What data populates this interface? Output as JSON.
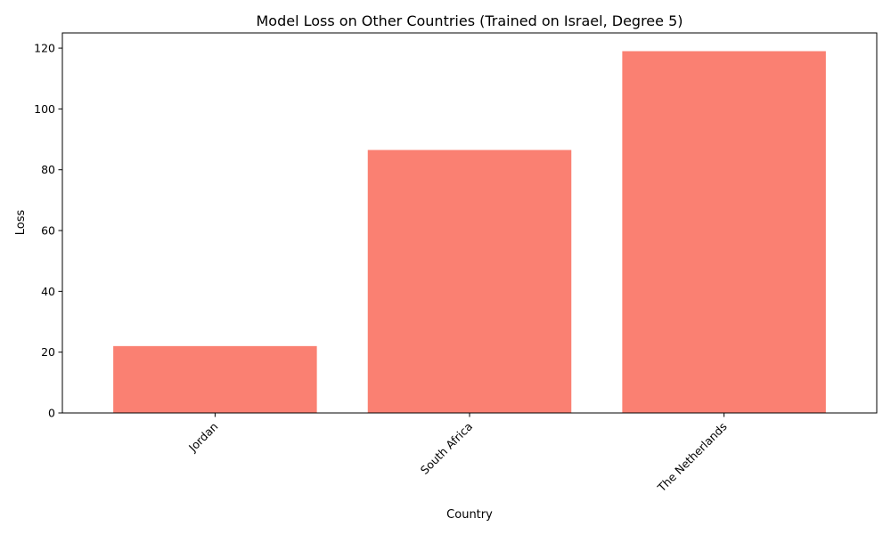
{
  "chart_data": {
    "type": "bar",
    "title": "Model Loss on Other Countries (Trained on Israel, Degree 5)",
    "xlabel": "Country",
    "ylabel": "Loss",
    "categories": [
      "Jordan",
      "South Africa",
      "The Netherlands"
    ],
    "values": [
      22,
      86.5,
      119
    ],
    "ylim": [
      0,
      125
    ],
    "yticks": [
      0,
      20,
      40,
      60,
      80,
      100,
      120
    ],
    "grid": false,
    "bar_color": "#fa8072",
    "xtick_rotation_deg": 45
  }
}
